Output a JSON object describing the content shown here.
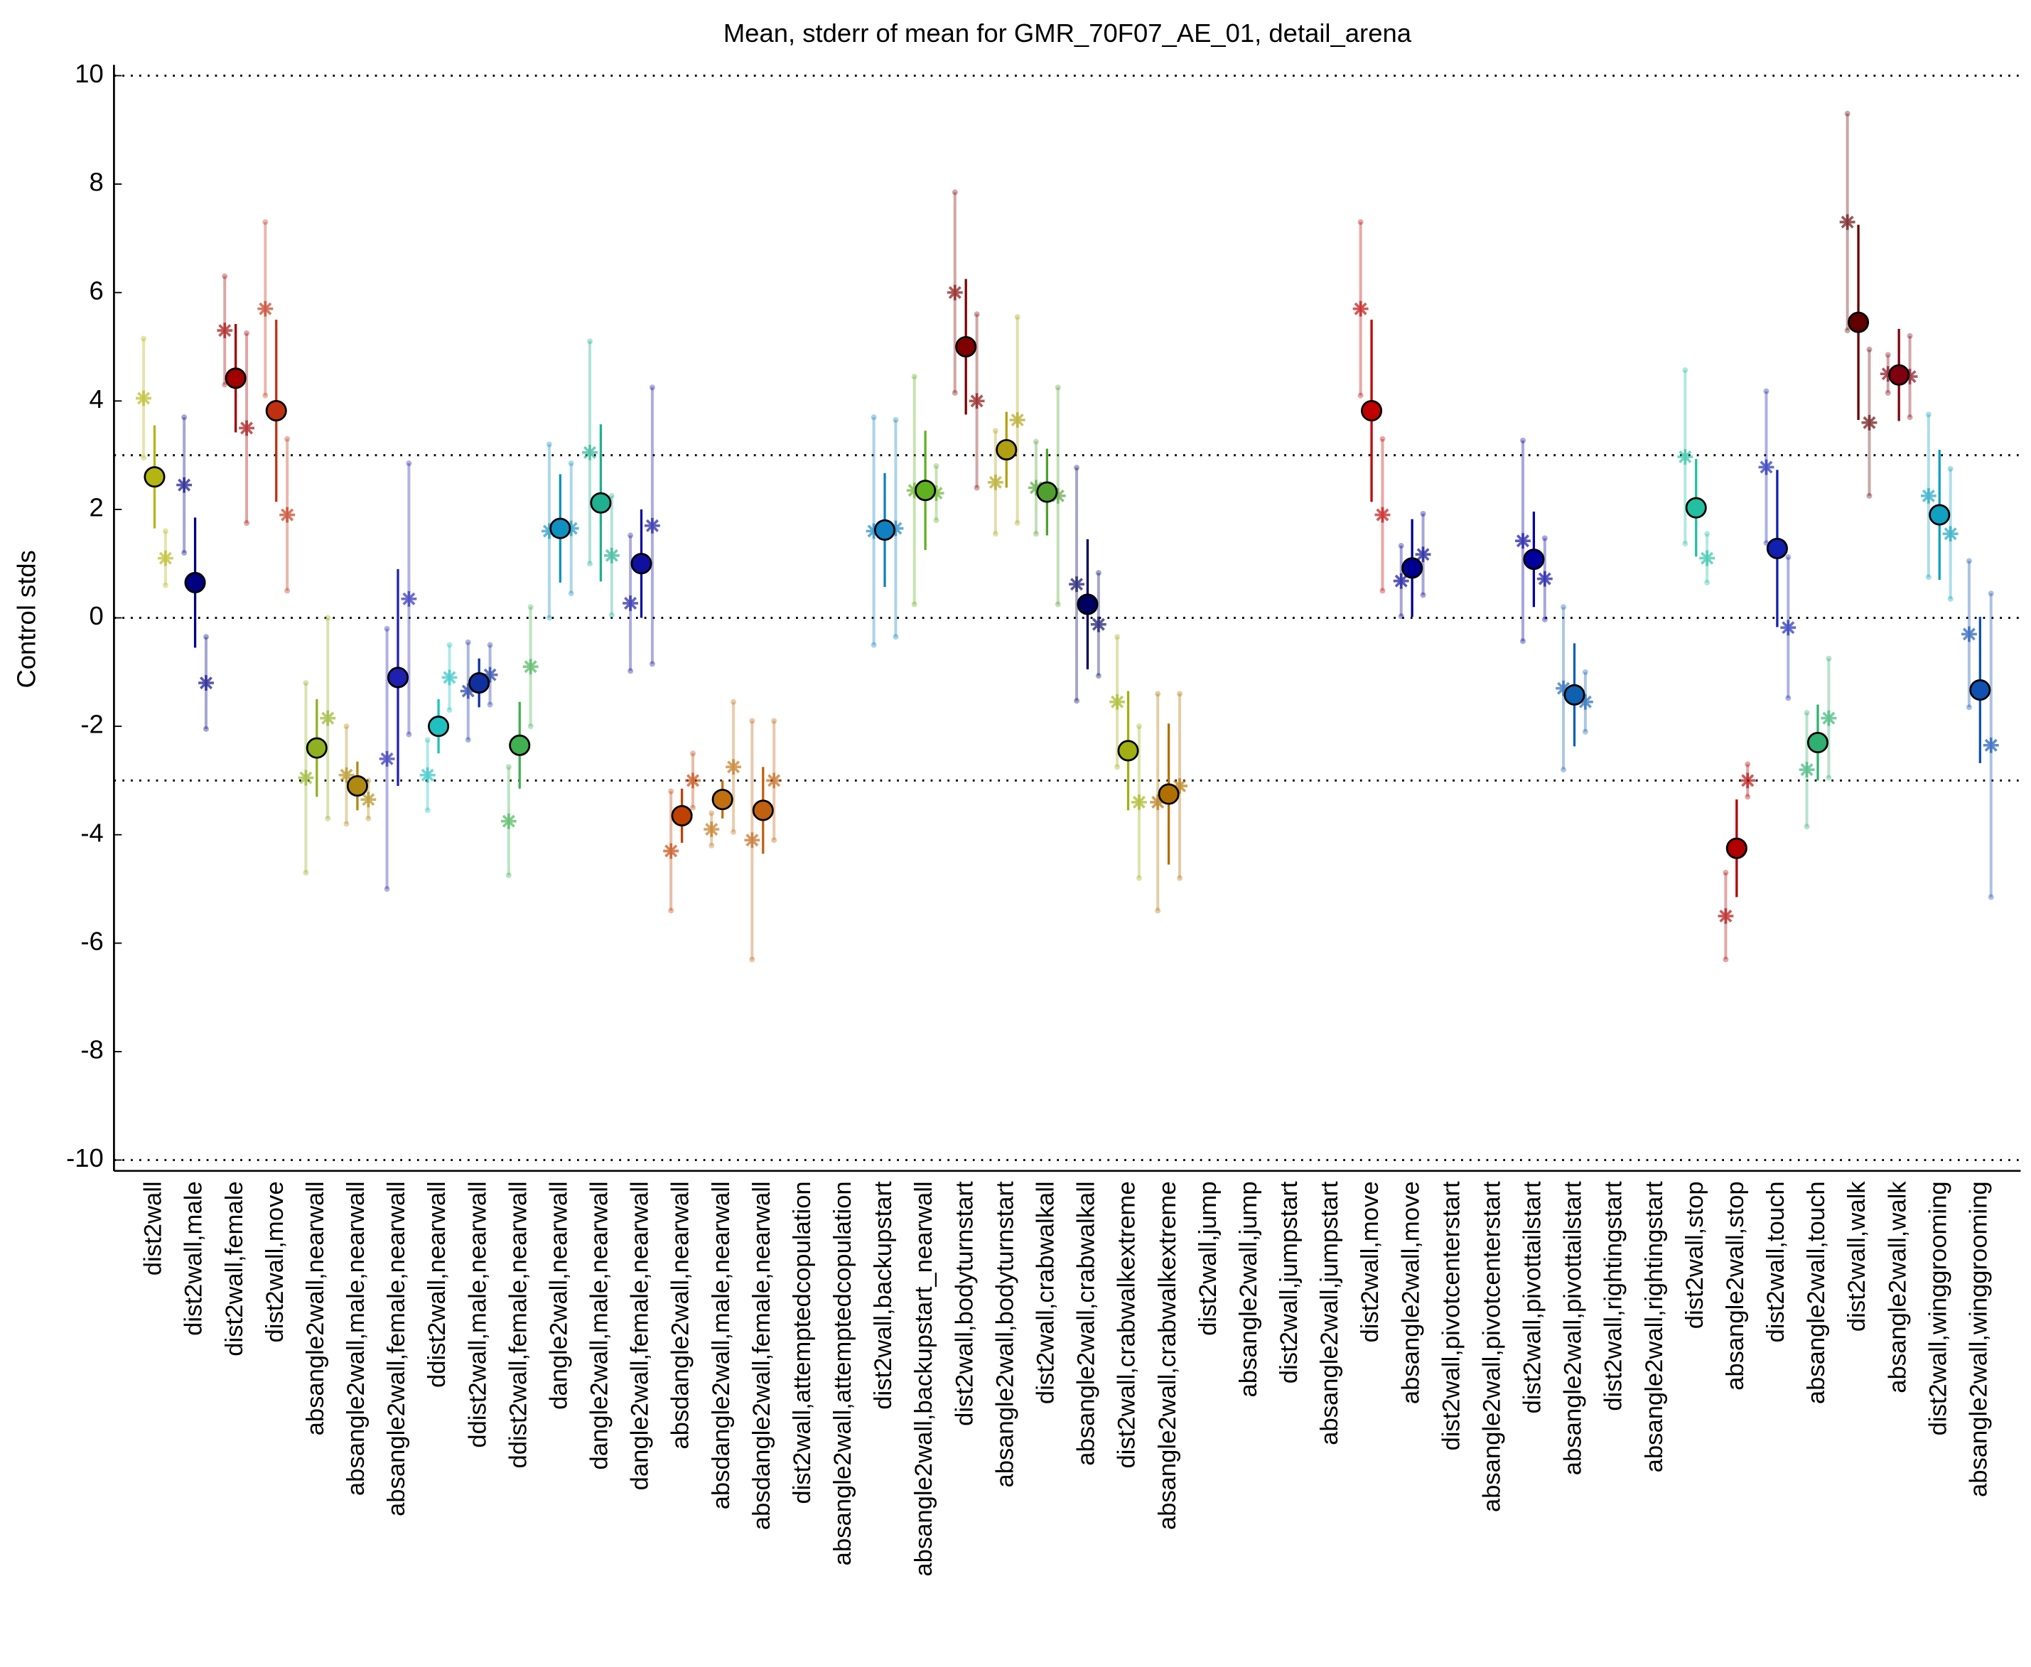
{
  "chart_data": {
    "type": "errorbar",
    "title": "Mean, stderr of mean for GMR_70F07_AE_01, detail_arena",
    "ylabel": "Control stds",
    "ylim": [
      -10.2,
      10.2
    ],
    "yticks": [
      -10,
      -8,
      -6,
      -4,
      -2,
      0,
      2,
      4,
      6,
      8,
      10
    ],
    "reference_lines": [
      -10,
      -3,
      0,
      3,
      10
    ],
    "categories": [
      "dist2wall",
      "dist2wall,male",
      "dist2wall,female",
      "dist2wall,move",
      "absangle2wall,nearwall",
      "absangle2wall,male,nearwall",
      "absangle2wall,female,nearwall",
      "ddist2wall,nearwall",
      "ddist2wall,male,nearwall",
      "ddist2wall,female,nearwall",
      "dangle2wall,nearwall",
      "dangle2wall,male,nearwall",
      "dangle2wall,female,nearwall",
      "absdangle2wall,nearwall",
      "absdangle2wall,male,nearwall",
      "absdangle2wall,female,nearwall",
      "dist2wall,attemptedcopulation",
      "absangle2wall,attemptedcopulation",
      "dist2wall,backupstart",
      "absangle2wall,backupstart_nearwall",
      "dist2wall,bodyturnstart",
      "absangle2wall,bodyturnstart",
      "dist2wall,crabwalkall",
      "absangle2wall,crabwalkall",
      "dist2wall,crabwalkextreme",
      "absangle2wall,crabwalkextreme",
      "dist2wall,jump",
      "absangle2wall,jump",
      "dist2wall,jumpstart",
      "absangle2wall,jumpstart",
      "dist2wall,move",
      "absangle2wall,move",
      "dist2wall,pivotcenterstart",
      "absangle2wall,pivotcenterstart",
      "dist2wall,pivottailstart",
      "absangle2wall,pivottailstart",
      "dist2wall,rightingstart",
      "absangle2wall,rightingstart",
      "dist2wall,stop",
      "absangle2wall,stop",
      "dist2wall,touch",
      "absangle2wall,touch",
      "dist2wall,walk",
      "absangle2wall,walk",
      "dist2wall,winggrooming",
      "absangle2wall,winggrooming"
    ],
    "colors": [
      "#b5b512",
      "#000080",
      "#a00000",
      "#c03010",
      "#8fb020",
      "#b08a10",
      "#2020b0",
      "#20c0c0",
      "#1030a0",
      "#40b050",
      "#1090c0",
      "#20b090",
      "#1010a0",
      "#c04000",
      "#c07010",
      "#c06010",
      "#999999",
      "#999999",
      "#1080c0",
      "#60b020",
      "#800000",
      "#b0a010",
      "#50a030",
      "#000060",
      "#a0b010",
      "#b07000",
      "#999999",
      "#999999",
      "#999999",
      "#999999",
      "#c00000",
      "#000090",
      "#999999",
      "#999999",
      "#0000a0",
      "#1060b0",
      "#999999",
      "#999999",
      "#20c0a0",
      "#b00000",
      "#1020b0",
      "#30b070",
      "#600000",
      "#800010",
      "#10a0c0",
      "#1050b0"
    ],
    "values": [
      2.6,
      0.65,
      4.42,
      3.82,
      -2.4,
      -3.1,
      -1.1,
      -2.0,
      -1.2,
      -2.35,
      1.65,
      2.12,
      1.0,
      -3.65,
      -3.35,
      -3.55,
      null,
      null,
      1.62,
      2.35,
      5.0,
      3.1,
      2.32,
      0.25,
      -2.45,
      -3.25,
      null,
      null,
      null,
      null,
      3.82,
      0.92,
      null,
      null,
      1.08,
      -1.42,
      null,
      null,
      2.03,
      -4.25,
      1.28,
      -2.3,
      5.45,
      4.48,
      1.9,
      -1.33
    ],
    "errors": [
      0.95,
      1.2,
      1.0,
      1.68,
      0.9,
      0.45,
      2.0,
      0.5,
      0.45,
      0.8,
      1.0,
      1.45,
      1.0,
      0.5,
      0.35,
      0.8,
      null,
      null,
      1.05,
      1.1,
      1.25,
      0.7,
      0.8,
      1.2,
      1.1,
      1.3,
      null,
      null,
      null,
      null,
      1.68,
      0.9,
      null,
      null,
      0.88,
      0.95,
      null,
      null,
      0.9,
      0.9,
      1.45,
      0.7,
      1.8,
      0.85,
      1.2,
      1.35
    ],
    "left_values": [
      4.05,
      2.45,
      5.3,
      5.7,
      -2.95,
      -2.9,
      -2.6,
      -2.9,
      -1.35,
      -3.75,
      1.6,
      3.05,
      0.27,
      -4.3,
      -3.9,
      -4.1,
      null,
      null,
      1.6,
      2.35,
      6.0,
      2.5,
      2.4,
      0.62,
      -1.55,
      -3.4,
      null,
      null,
      null,
      null,
      5.7,
      0.68,
      null,
      null,
      1.42,
      -1.3,
      null,
      null,
      2.97,
      -5.5,
      2.78,
      -2.8,
      7.3,
      4.5,
      2.25,
      -0.3
    ],
    "left_errors": [
      1.1,
      1.25,
      1.0,
      1.6,
      1.75,
      0.9,
      2.4,
      0.65,
      0.9,
      1.0,
      1.6,
      2.05,
      1.25,
      1.1,
      0.3,
      2.2,
      null,
      null,
      2.1,
      2.1,
      1.85,
      0.95,
      0.85,
      2.15,
      1.2,
      2.0,
      null,
      null,
      null,
      null,
      1.6,
      0.65,
      null,
      null,
      1.85,
      1.5,
      null,
      null,
      1.6,
      0.8,
      1.4,
      1.05,
      2.0,
      0.35,
      1.5,
      1.35
    ],
    "right_values": [
      1.1,
      -1.2,
      3.5,
      1.9,
      -1.85,
      -3.35,
      0.35,
      -1.1,
      -1.05,
      -0.9,
      1.65,
      1.15,
      1.7,
      -3.0,
      -2.75,
      -3.0,
      null,
      null,
      1.65,
      2.3,
      4.0,
      3.65,
      2.25,
      -0.12,
      -3.4,
      -3.1,
      null,
      null,
      null,
      null,
      1.9,
      1.17,
      null,
      null,
      0.72,
      -1.55,
      null,
      null,
      1.1,
      -3.0,
      -0.18,
      -1.85,
      3.6,
      4.45,
      1.55,
      -2.35
    ],
    "right_errors": [
      0.5,
      0.85,
      1.75,
      1.4,
      1.85,
      0.35,
      2.5,
      0.6,
      0.55,
      1.1,
      1.2,
      1.1,
      2.55,
      0.5,
      1.2,
      1.1,
      null,
      null,
      2.0,
      0.5,
      1.6,
      1.9,
      2.0,
      0.95,
      1.4,
      1.7,
      null,
      null,
      null,
      null,
      1.4,
      0.75,
      null,
      null,
      0.75,
      0.55,
      null,
      null,
      0.45,
      0.3,
      1.3,
      1.1,
      1.35,
      0.75,
      1.2,
      2.8
    ]
  }
}
